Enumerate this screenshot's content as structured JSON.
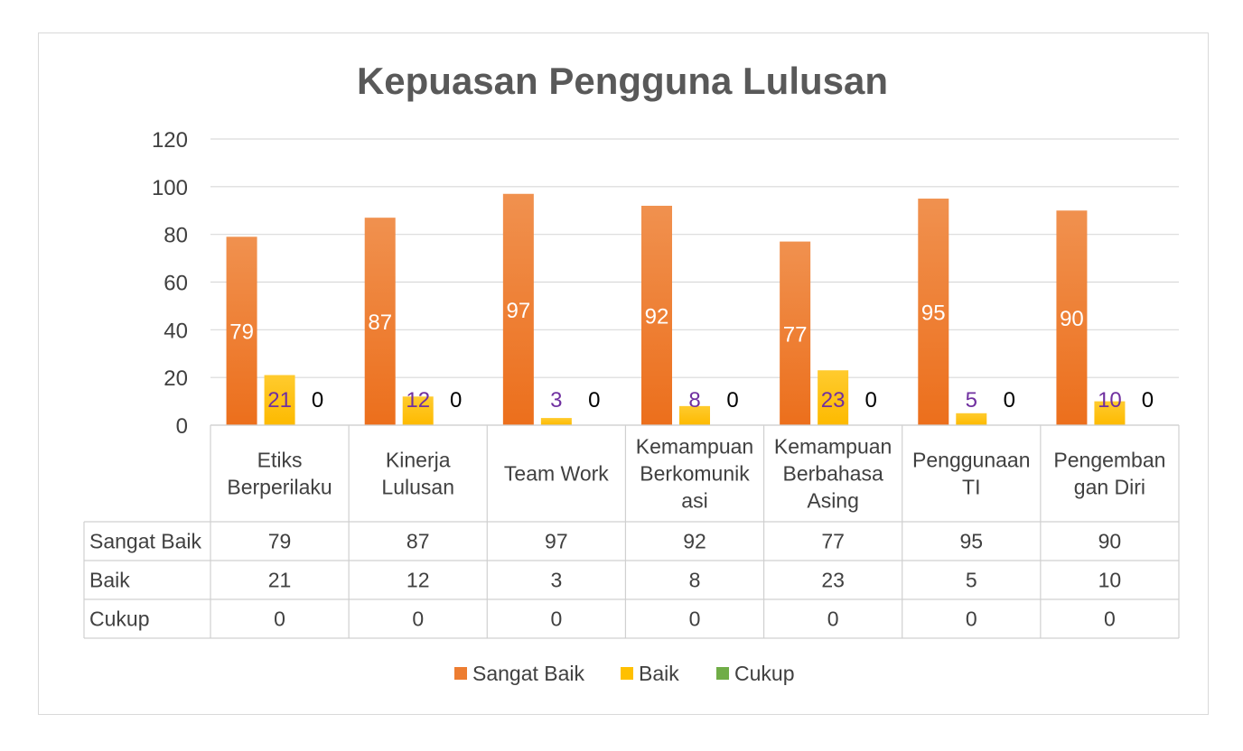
{
  "chart_data": {
    "type": "bar",
    "title": "Kepuasan Pengguna Lulusan",
    "categories": [
      [
        "Etiks",
        "Berperilaku"
      ],
      [
        "Kinerja",
        "Lulusan"
      ],
      [
        "Team Work"
      ],
      [
        "Kemampuan",
        "Berkomunik",
        "asi"
      ],
      [
        "Kemampuan",
        "Berbahasa",
        "Asing"
      ],
      [
        "Penggunaan",
        "TI"
      ],
      [
        "Pengemban",
        "gan Diri"
      ]
    ],
    "series": [
      {
        "name": "Sangat Baik",
        "values": [
          79,
          87,
          97,
          92,
          77,
          95,
          90
        ],
        "color": "#ED7D31"
      },
      {
        "name": "Baik",
        "values": [
          21,
          12,
          3,
          8,
          23,
          5,
          10
        ],
        "color": "#FFC000"
      },
      {
        "name": "Cukup",
        "values": [
          0,
          0,
          0,
          0,
          0,
          0,
          0
        ],
        "color": "#70AD47"
      }
    ],
    "ylim": [
      0,
      120
    ],
    "yticks": [
      0,
      20,
      40,
      60,
      80,
      100,
      120
    ],
    "grid": true,
    "legend": "bottom",
    "data_table": true,
    "label_colors": {
      "Sangat Baik": "#ffffff",
      "Baik": "#7030A0",
      "Cukup": "#000000"
    }
  }
}
